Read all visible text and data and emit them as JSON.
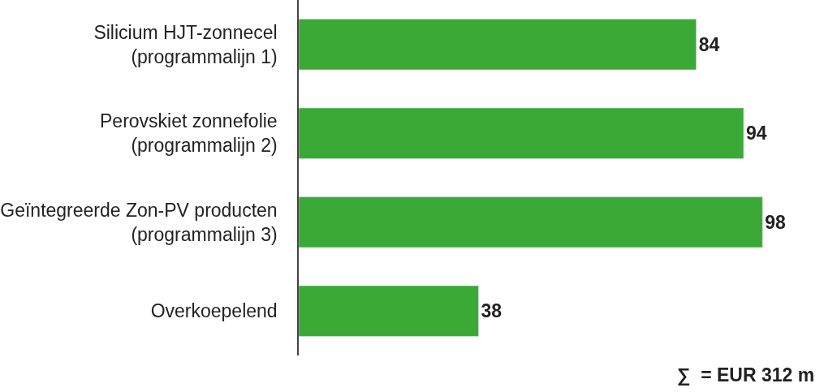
{
  "chart_data": {
    "type": "bar",
    "orientation": "horizontal",
    "categories": [
      "Silicium HJT-zonnecel\n(programmalijn 1)",
      "Perovskiet zonnefolie\n(programmalijn 2)",
      "Geïntegreerde Zon-PV producten\n(programmalijn 3)",
      "Overkoepelend"
    ],
    "values": [
      84,
      94,
      98,
      38
    ],
    "color": "#3aa935",
    "data_labels": true,
    "tick_labels": "y",
    "legend": false,
    "annotations": [
      "∑  = EUR 312 m"
    ]
  }
}
